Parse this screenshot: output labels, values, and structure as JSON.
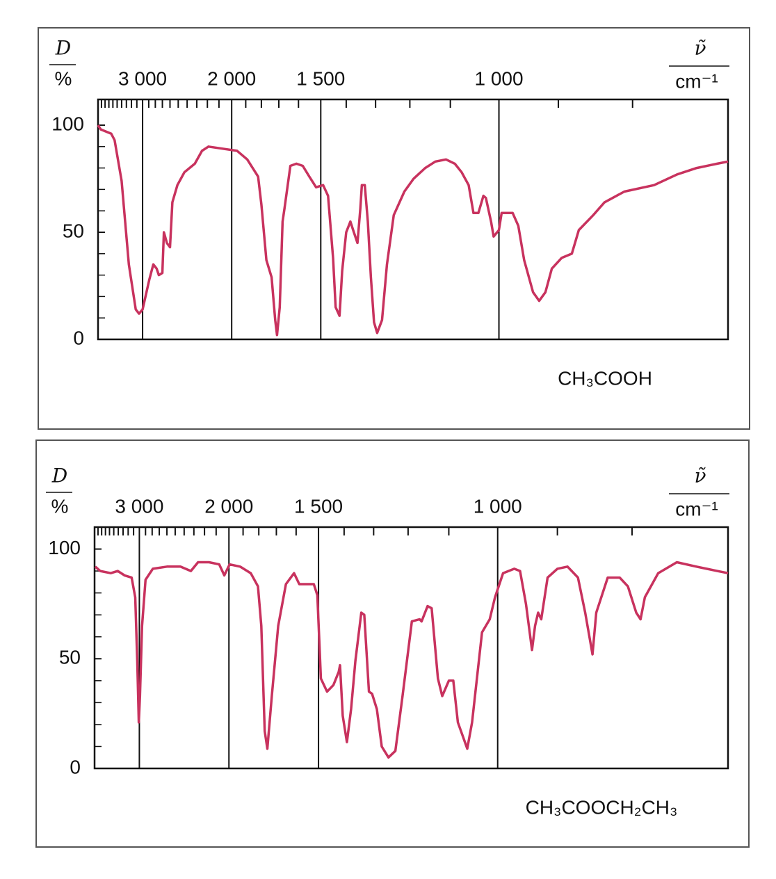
{
  "chart_data": [
    {
      "type": "line",
      "xscale": "reciprocal",
      "color": "#c8325e",
      "ylabel_symbol": "D",
      "ylabel_unit": "%",
      "xlabel_symbol": "ν̃",
      "xlabel_unit": "cm⁻¹",
      "annotation": "CH₃COOH",
      "xlim": [
        4000,
        700
      ],
      "ylim": [
        0,
        112
      ],
      "xticks": [
        {
          "value": 3000,
          "label": "3 000"
        },
        {
          "value": 2000,
          "label": "2 000"
        },
        {
          "value": 1500,
          "label": "1 500"
        },
        {
          "value": 1000,
          "label": "1 000"
        }
      ],
      "xminorticks": [
        3900,
        3800,
        3700,
        3600,
        3500,
        3400,
        3300,
        3200,
        3100,
        2900,
        2800,
        2700,
        2600,
        2500,
        2400,
        2300,
        2200,
        2100,
        1900,
        1800,
        1700,
        1600,
        1400,
        1300,
        1200,
        1100,
        900,
        800
      ],
      "yticks": [
        0,
        50,
        100
      ],
      "yminorticks": [
        10,
        20,
        30,
        40,
        60,
        70,
        80,
        90
      ],
      "grid": true,
      "x": [
        4000,
        3920,
        3640,
        3560,
        3400,
        3250,
        3120,
        3060,
        3000,
        2890,
        2830,
        2780,
        2750,
        2700,
        2680,
        2640,
        2600,
        2570,
        2510,
        2430,
        2320,
        2250,
        2190,
        2070,
        1960,
        1890,
        1820,
        1800,
        1770,
        1740,
        1720,
        1710,
        1695,
        1680,
        1670,
        1640,
        1610,
        1580,
        1550,
        1520,
        1490,
        1470,
        1450,
        1440,
        1425,
        1415,
        1400,
        1385,
        1375,
        1360,
        1350,
        1345,
        1335,
        1325,
        1315,
        1305,
        1295,
        1280,
        1265,
        1245,
        1215,
        1190,
        1160,
        1135,
        1110,
        1090,
        1075,
        1060,
        1050,
        1040,
        1030,
        1025,
        1015,
        1010,
        1000,
        995,
        975,
        965,
        955,
        940,
        930,
        920,
        910,
        895,
        880,
        870,
        850,
        835,
        810,
        775,
        750,
        730,
        710,
        700
      ],
      "values": [
        100,
        98,
        96,
        93,
        74,
        35,
        14,
        12,
        14,
        28,
        35,
        33,
        30,
        31,
        50,
        45,
        43,
        64,
        72,
        78,
        82,
        88,
        90,
        89,
        88,
        84,
        76,
        63,
        37,
        29,
        9,
        2,
        15,
        55,
        61,
        81,
        82,
        81,
        76,
        71,
        72,
        67,
        38,
        15,
        11,
        32,
        50,
        55,
        51,
        45,
        61,
        72,
        72,
        55,
        29,
        8,
        3,
        9,
        35,
        58,
        69,
        75,
        80,
        83,
        84,
        82,
        78,
        72,
        59,
        59,
        67,
        66,
        55,
        48,
        51,
        59,
        59,
        53,
        37,
        22,
        18,
        22,
        33,
        38,
        40,
        51,
        58,
        64,
        69,
        72,
        77,
        80,
        82,
        83
      ]
    },
    {
      "type": "line",
      "xscale": "reciprocal",
      "color": "#c8325e",
      "ylabel_symbol": "D",
      "ylabel_unit": "%",
      "xlabel_symbol": "ν̃",
      "xlabel_unit": "cm⁻¹",
      "annotation": "CH₃COOCH₂CH₃",
      "xlim": [
        4000,
        700
      ],
      "ylim": [
        0,
        110
      ],
      "xticks": [
        {
          "value": 3000,
          "label": "3 000"
        },
        {
          "value": 2000,
          "label": "2 000"
        },
        {
          "value": 1500,
          "label": "1 500"
        },
        {
          "value": 1000,
          "label": "1 000"
        }
      ],
      "xminorticks": [
        3900,
        3800,
        3700,
        3600,
        3500,
        3400,
        3300,
        3200,
        3100,
        2900,
        2800,
        2700,
        2600,
        2500,
        2400,
        2300,
        2200,
        2100,
        1900,
        1800,
        1700,
        1600,
        1400,
        1300,
        1200,
        1100,
        900,
        800
      ],
      "yticks": [
        0,
        50,
        100
      ],
      "yminorticks": [
        10,
        20,
        30,
        40,
        60,
        70,
        80,
        90
      ],
      "grid": true,
      "x": [
        3980,
        3840,
        3570,
        3410,
        3270,
        3135,
        3070,
        3035,
        3010,
        2990,
        2955,
        2900,
        2790,
        2600,
        2440,
        2330,
        2260,
        2160,
        2075,
        2035,
        1995,
        1920,
        1850,
        1805,
        1785,
        1765,
        1750,
        1725,
        1690,
        1650,
        1610,
        1585,
        1520,
        1505,
        1490,
        1465,
        1440,
        1420,
        1415,
        1405,
        1390,
        1375,
        1360,
        1340,
        1330,
        1315,
        1305,
        1290,
        1275,
        1255,
        1235,
        1215,
        1190,
        1170,
        1165,
        1150,
        1140,
        1125,
        1115,
        1100,
        1090,
        1080,
        1060,
        1050,
        1030,
        1015,
        1005,
        990,
        970,
        960,
        950,
        940,
        935,
        930,
        925,
        915,
        900,
        885,
        870,
        860,
        850,
        845,
        830,
        815,
        805,
        795,
        790,
        785,
        770,
        750,
        730,
        710,
        700
      ],
      "values": [
        92,
        90,
        89,
        90,
        88,
        87,
        78,
        49,
        21,
        33,
        65,
        86,
        91,
        92,
        92,
        90,
        94,
        94,
        93,
        88,
        93,
        92,
        89,
        83,
        65,
        17,
        9,
        33,
        65,
        84,
        89,
        84,
        84,
        79,
        41,
        35,
        38,
        44,
        47,
        24,
        12,
        27,
        49,
        71,
        70,
        35,
        34,
        27,
        10,
        5,
        8,
        33,
        67,
        68,
        67,
        74,
        73,
        41,
        33,
        40,
        40,
        21,
        9,
        21,
        62,
        68,
        78,
        89,
        91,
        90,
        75,
        54,
        65,
        71,
        68,
        87,
        91,
        92,
        87,
        71,
        52,
        71,
        87,
        87,
        83,
        71,
        68,
        78,
        89,
        94,
        92,
        90,
        89
      ]
    }
  ]
}
